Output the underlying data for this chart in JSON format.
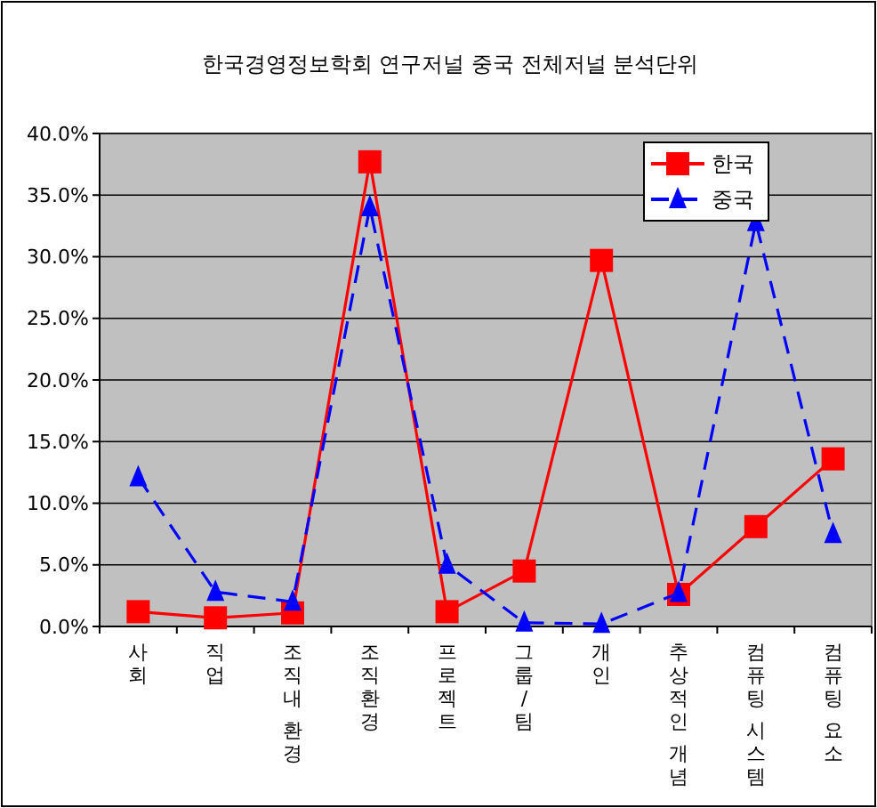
{
  "chart_data": {
    "type": "line",
    "title": "한국경영정보학회 연구저널 중국 전체저널 분석단위",
    "categories": [
      "사회",
      "직업",
      "조직내 환경",
      "조직환경",
      "프로젝트",
      "그룹/팀",
      "개인",
      "추상적인 개념",
      "컴퓨팅 시스템",
      "컴퓨팅 요소"
    ],
    "series": [
      {
        "name": "한국",
        "color": "#ff0000",
        "marker": "square",
        "line_style": "solid",
        "values": [
          1.2,
          0.7,
          1.1,
          37.7,
          1.2,
          4.5,
          29.7,
          2.6,
          8.1,
          13.6
        ]
      },
      {
        "name": "중국",
        "color": "#0000ff",
        "marker": "triangle",
        "line_style": "dashed",
        "values": [
          12.1,
          2.8,
          2.0,
          34.0,
          5.0,
          0.3,
          0.2,
          2.7,
          32.8,
          7.5
        ]
      }
    ],
    "ylim": [
      0,
      40
    ],
    "yticks": [
      {
        "value": 0,
        "label": "0.0%"
      },
      {
        "value": 5,
        "label": "5.0%"
      },
      {
        "value": 10,
        "label": "10.0%"
      },
      {
        "value": 15,
        "label": "15.0%"
      },
      {
        "value": 20,
        "label": "20.0%"
      },
      {
        "value": 25,
        "label": "25.0%"
      },
      {
        "value": 30,
        "label": "30.0%"
      },
      {
        "value": 35,
        "label": "35.0%"
      },
      {
        "value": 40,
        "label": "40.0%"
      }
    ],
    "grid": "y",
    "legend": "top right"
  }
}
